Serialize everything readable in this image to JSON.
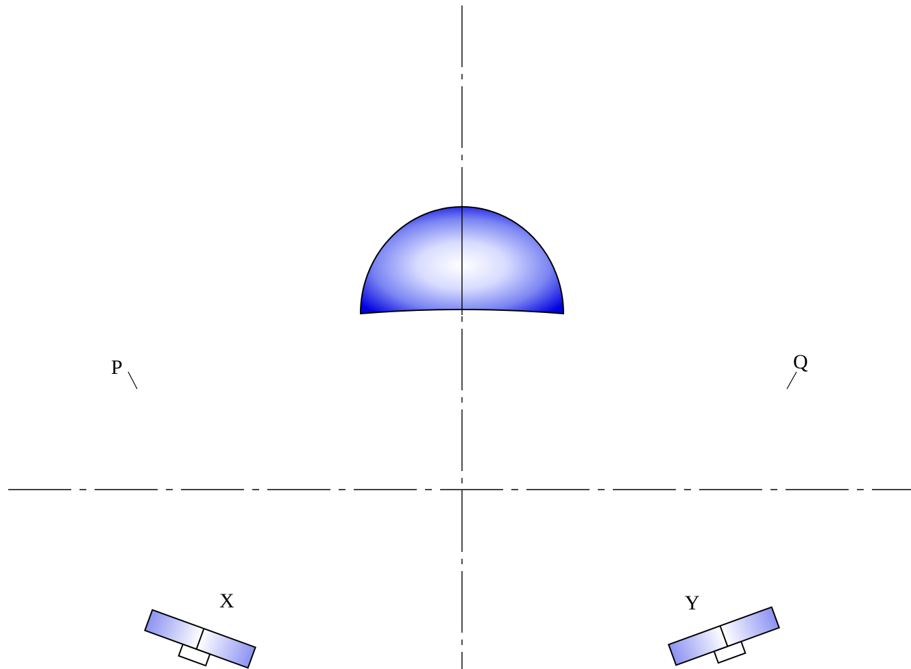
{
  "labels": {
    "p": "P",
    "q": "Q",
    "x": "X",
    "y": "Y"
  },
  "colors": {
    "fill_primary": "#0000e6",
    "fill_highlight": "#ffffff",
    "line": "#000000"
  }
}
